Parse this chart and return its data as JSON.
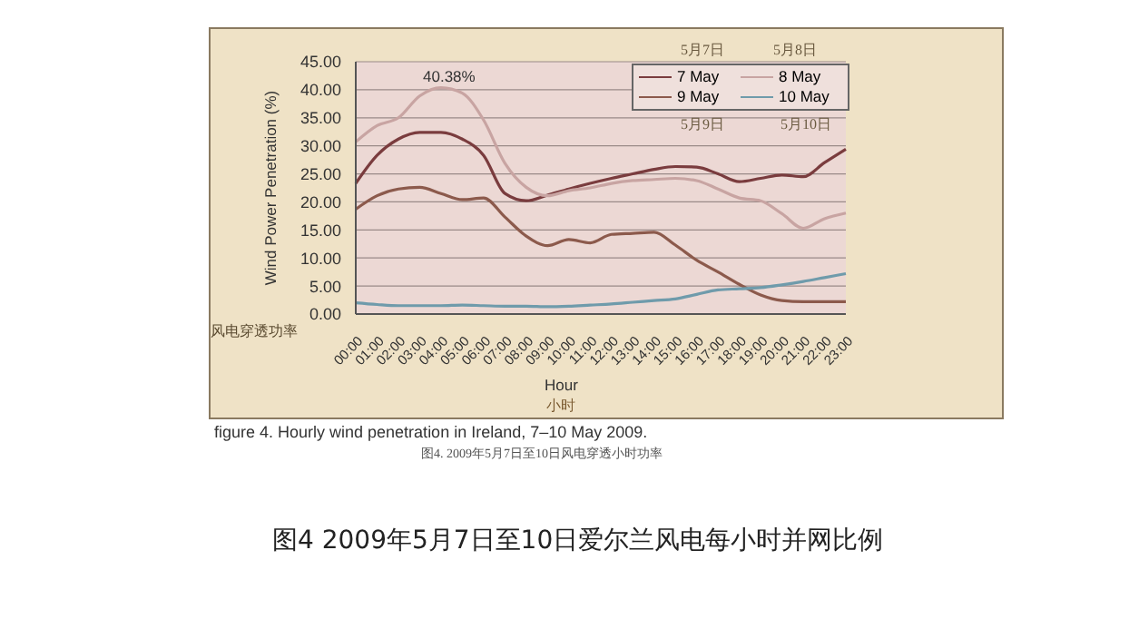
{
  "chart_data": {
    "type": "line",
    "title": "figure 4. Hourly wind penetration in Ireland, 7–10 May 2009.",
    "xlabel": "Hour",
    "ylabel": "Wind Power Penetration (%)",
    "categories": [
      "00:00",
      "01:00",
      "02:00",
      "03:00",
      "04:00",
      "05:00",
      "06:00",
      "07:00",
      "08:00",
      "09:00",
      "10:00",
      "11:00",
      "12:00",
      "13:00",
      "14:00",
      "15:00",
      "16:00",
      "17:00",
      "18:00",
      "19:00",
      "20:00",
      "21:00",
      "22:00",
      "23:00"
    ],
    "series": [
      {
        "name": "7 May",
        "color": "#7a3c3e",
        "values": [
          23.3,
          28.3,
          31.2,
          32.4,
          32.4,
          31.2,
          28.3,
          21.5,
          20.2,
          21.2,
          22.3,
          23.3,
          24.2,
          25,
          25.8,
          26.3,
          26.2,
          25,
          23.6,
          24.2,
          24.8,
          24.5,
          27,
          29.4
        ]
      },
      {
        "name": "8 May",
        "color": "#c8a4a2",
        "values": [
          30.7,
          33.6,
          35,
          38.9,
          40.38,
          39.4,
          34.6,
          26.9,
          22.6,
          21.1,
          22,
          22.5,
          23.3,
          23.8,
          24,
          24.2,
          23.8,
          22.3,
          20.7,
          20.2,
          17.9,
          15.3,
          17,
          18
        ]
      },
      {
        "name": "9 May",
        "color": "#8c5a4c",
        "values": [
          18.7,
          21.1,
          22.3,
          22.6,
          21.5,
          20.4,
          20.7,
          17.3,
          13.9,
          12.2,
          13.3,
          12.7,
          14.2,
          14.4,
          14.6,
          12.3,
          9.6,
          7.5,
          5.3,
          3.4,
          2.4,
          2.2,
          2.2,
          2.2
        ]
      },
      {
        "name": "10 May",
        "color": "#6f9bab",
        "values": [
          2,
          1.7,
          1.5,
          1.5,
          1.5,
          1.6,
          1.5,
          1.4,
          1.4,
          1.3,
          1.4,
          1.6,
          1.8,
          2.1,
          2.4,
          2.7,
          3.5,
          4.3,
          4.5,
          4.7,
          5.2,
          5.8,
          6.5,
          7.2
        ]
      }
    ],
    "ylim": [
      0,
      45
    ],
    "yticks": [
      {
        "value": 0,
        "label": "0.00"
      },
      {
        "value": 5,
        "label": "5.00"
      },
      {
        "value": 10,
        "label": "10.00"
      },
      {
        "value": 15,
        "label": "15.00"
      },
      {
        "value": 20,
        "label": "20.00"
      },
      {
        "value": 25,
        "label": "25.00"
      },
      {
        "value": 30,
        "label": "30.00"
      },
      {
        "value": 35,
        "label": "35.00"
      },
      {
        "value": 40,
        "label": "40.00"
      },
      {
        "value": 45,
        "label": "45.00"
      }
    ],
    "grid": "y",
    "legend": "top right",
    "marker": "none",
    "line_style": "solid",
    "annotations": [
      "40.38%",
      "5月7日",
      "5月8日",
      "5月9日",
      "5月10日",
      "风电穿透功率",
      "小时",
      "图4. 2009年5月7日至10日风电穿透小时功率",
      "图4 2009年5月7日至10日爱尔兰风电每小时并网比例"
    ]
  }
}
